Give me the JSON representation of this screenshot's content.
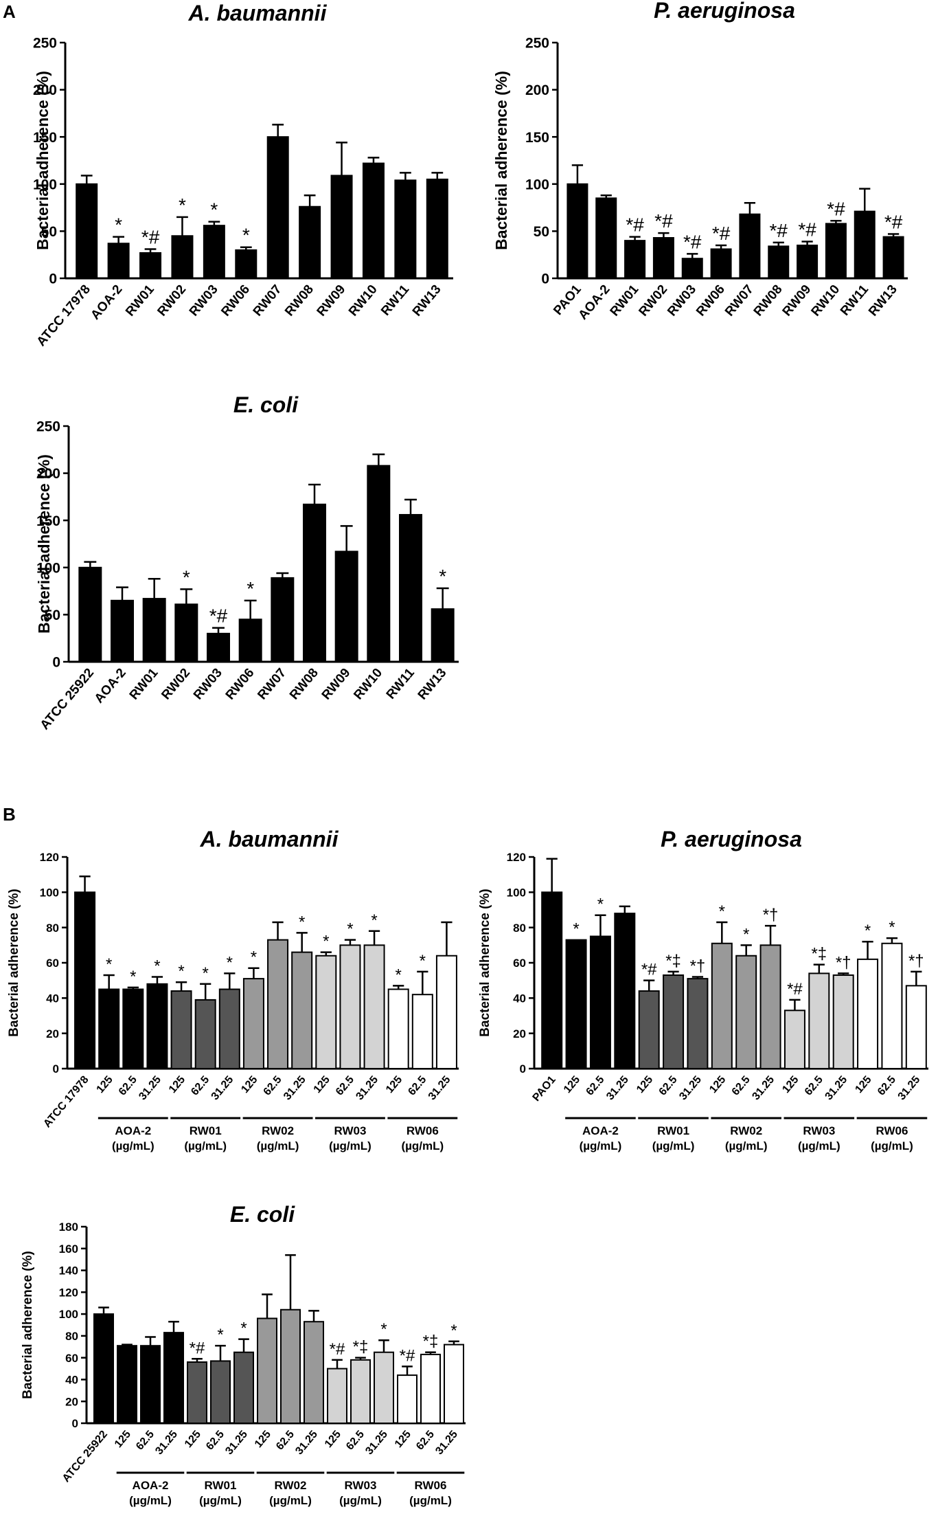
{
  "panels": {
    "A": "A",
    "B": "B"
  },
  "legend_colors": {
    "black": "#000000",
    "dark_gray": "#555555",
    "mid_gray": "#999999",
    "light_gray": "#d3d3d3",
    "white": "#ffffff"
  },
  "chart_data": [
    {
      "type": "bar",
      "panel": "A",
      "title": "A. baumannii",
      "ylabel": "Bacterial adherence (%)",
      "xlabel": "",
      "ylim": [
        0,
        250
      ],
      "yticks": [
        0,
        50,
        100,
        150,
        200,
        250
      ],
      "categories": [
        "ATCC 17978",
        "AOA-2",
        "RW01",
        "RW02",
        "RW03",
        "RW06",
        "RW07",
        "RW08",
        "RW09",
        "RW10",
        "RW11",
        "RW13"
      ],
      "values": [
        100,
        37,
        27,
        45,
        56,
        30,
        150,
        76,
        109,
        122,
        104,
        105
      ],
      "errors": [
        9,
        7,
        4,
        20,
        4,
        3,
        13,
        12,
        35,
        6,
        8,
        7
      ],
      "annotations": [
        "",
        "*",
        "*#",
        "*",
        "*",
        "*",
        "",
        "",
        "",
        "",
        "",
        ""
      ],
      "bar_colors": [
        "black",
        "black",
        "black",
        "black",
        "black",
        "black",
        "black",
        "black",
        "black",
        "black",
        "black",
        "black"
      ]
    },
    {
      "type": "bar",
      "panel": "A",
      "title": "P. aeruginosa",
      "ylabel": "Bacterial adherence (%)",
      "xlabel": "",
      "ylim": [
        0,
        250
      ],
      "yticks": [
        0,
        50,
        100,
        150,
        200,
        250
      ],
      "categories": [
        "PAO1",
        "AOA-2",
        "RW01",
        "RW02",
        "RW03",
        "RW06",
        "RW07",
        "RW08",
        "RW09",
        "RW10",
        "RW11",
        "RW13"
      ],
      "values": [
        100,
        85,
        40,
        43,
        21,
        31,
        68,
        34,
        35,
        58,
        71,
        44
      ],
      "errors": [
        20,
        3,
        4,
        5,
        5,
        4,
        12,
        4,
        4,
        3,
        24,
        3
      ],
      "annotations": [
        "",
        "",
        "*#",
        "*#",
        "*#",
        "*#",
        "",
        "*#",
        "*#",
        "*#",
        "",
        "*#"
      ],
      "bar_colors": [
        "black",
        "black",
        "black",
        "black",
        "black",
        "black",
        "black",
        "black",
        "black",
        "black",
        "black",
        "black"
      ]
    },
    {
      "type": "bar",
      "panel": "A",
      "title": "E. coli",
      "ylabel": "Bacterial adherence (%)",
      "xlabel": "",
      "ylim": [
        0,
        250
      ],
      "yticks": [
        0,
        50,
        100,
        150,
        200,
        250
      ],
      "categories": [
        "ATCC 25922",
        "AOA-2",
        "RW01",
        "RW02",
        "RW03",
        "RW06",
        "RW07",
        "RW08",
        "RW09",
        "RW10",
        "RW11",
        "RW13"
      ],
      "values": [
        100,
        65,
        67,
        61,
        30,
        45,
        89,
        167,
        117,
        208,
        156,
        56
      ],
      "errors": [
        6,
        14,
        21,
        16,
        6,
        20,
        5,
        21,
        27,
        12,
        16,
        22
      ],
      "annotations": [
        "",
        "",
        "",
        "*",
        "*#",
        "*",
        "",
        "",
        "",
        "",
        "",
        "*"
      ],
      "bar_colors": [
        "black",
        "black",
        "black",
        "black",
        "black",
        "black",
        "black",
        "black",
        "black",
        "black",
        "black",
        "black"
      ]
    },
    {
      "type": "bar",
      "panel": "B",
      "title": "A. baumannii",
      "ylabel": "Bacterial adherence (%)",
      "xlabel": "",
      "ylim": [
        0,
        120
      ],
      "yticks": [
        0,
        20,
        40,
        60,
        80,
        100,
        120
      ],
      "categories": [
        "ATCC 17978",
        "125",
        "62.5",
        "31.25",
        "125",
        "62.5",
        "31.25",
        "125",
        "62.5",
        "31.25",
        "125",
        "62.5",
        "31.25",
        "125",
        "62.5",
        "31.25"
      ],
      "values": [
        100,
        45,
        45,
        48,
        44,
        39,
        45,
        51,
        73,
        66,
        64,
        70,
        70,
        45,
        42,
        64
      ],
      "errors": [
        9,
        8,
        1,
        4,
        5,
        9,
        9,
        6,
        10,
        11,
        2,
        3,
        8,
        2,
        13,
        19
      ],
      "annotations": [
        "",
        "*",
        "*",
        "*",
        "*",
        "*",
        "*",
        "*",
        "",
        "*",
        "*",
        "*",
        "*",
        "*",
        "*",
        ""
      ],
      "bar_colors": [
        "black",
        "black",
        "black",
        "black",
        "dark_gray",
        "dark_gray",
        "dark_gray",
        "mid_gray",
        "mid_gray",
        "mid_gray",
        "light_gray",
        "light_gray",
        "light_gray",
        "white",
        "white",
        "white"
      ],
      "groups": [
        {
          "label": "AOA-2",
          "unit": "(µg/mL)",
          "start": 1,
          "end": 3
        },
        {
          "label": "RW01",
          "unit": "(µg/mL)",
          "start": 4,
          "end": 6
        },
        {
          "label": "RW02",
          "unit": "(µg/mL)",
          "start": 7,
          "end": 9
        },
        {
          "label": "RW03",
          "unit": "(µg/mL)",
          "start": 10,
          "end": 12
        },
        {
          "label": "RW06",
          "unit": "(µg/mL)",
          "start": 13,
          "end": 15
        }
      ]
    },
    {
      "type": "bar",
      "panel": "B",
      "title": "P. aeruginosa",
      "ylabel": "Bacterial adherence (%)",
      "xlabel": "",
      "ylim": [
        0,
        120
      ],
      "yticks": [
        0,
        20,
        40,
        60,
        80,
        100,
        120
      ],
      "categories": [
        "PAO1",
        "125",
        "62.5",
        "31.25",
        "125",
        "62.5",
        "31.25",
        "125",
        "62.5",
        "31.25",
        "125",
        "62.5",
        "31.25",
        "125",
        "62.5",
        "31.25"
      ],
      "values": [
        100,
        73,
        75,
        88,
        44,
        53,
        51,
        71,
        64,
        70,
        33,
        54,
        53,
        62,
        71,
        47
      ],
      "errors": [
        19,
        0,
        12,
        4,
        6,
        2,
        1,
        12,
        6,
        11,
        6,
        5,
        1,
        10,
        3,
        8
      ],
      "annotations": [
        "",
        "*",
        "*",
        "",
        "*#",
        "*‡",
        "*†",
        "*",
        "*",
        "*†",
        "*#",
        "*‡",
        "*†",
        "*",
        "*",
        "*†"
      ],
      "bar_colors": [
        "black",
        "black",
        "black",
        "black",
        "dark_gray",
        "dark_gray",
        "dark_gray",
        "mid_gray",
        "mid_gray",
        "mid_gray",
        "light_gray",
        "light_gray",
        "light_gray",
        "white",
        "white",
        "white"
      ],
      "groups": [
        {
          "label": "AOA-2",
          "unit": "(µg/mL)",
          "start": 1,
          "end": 3
        },
        {
          "label": "RW01",
          "unit": "(µg/mL)",
          "start": 4,
          "end": 6
        },
        {
          "label": "RW02",
          "unit": "(µg/mL)",
          "start": 7,
          "end": 9
        },
        {
          "label": "RW03",
          "unit": "(µg/mL)",
          "start": 10,
          "end": 12
        },
        {
          "label": "RW06",
          "unit": "(µg/mL)",
          "start": 13,
          "end": 15
        }
      ]
    },
    {
      "type": "bar",
      "panel": "B",
      "title": "E. coli",
      "ylabel": "Bacterial adherence (%)",
      "xlabel": "",
      "ylim": [
        0,
        180
      ],
      "yticks": [
        0,
        20,
        40,
        60,
        80,
        100,
        120,
        140,
        160,
        180
      ],
      "categories": [
        "ATCC 25922",
        "125",
        "62.5",
        "31.25",
        "125",
        "62.5",
        "31.25",
        "125",
        "62.5",
        "31.25",
        "125",
        "62.5",
        "31.25",
        "125",
        "62.5",
        "31.25"
      ],
      "values": [
        100,
        71,
        71,
        83,
        56,
        57,
        65,
        96,
        104,
        93,
        50,
        58,
        65,
        44,
        63,
        72
      ],
      "errors": [
        6,
        1,
        8,
        10,
        3,
        14,
        12,
        22,
        50,
        10,
        8,
        2,
        11,
        8,
        2,
        3
      ],
      "annotations": [
        "",
        "",
        "",
        "",
        "*#",
        "*",
        "*",
        "",
        "",
        "",
        "*#",
        "*‡",
        "*",
        "*#",
        "*‡",
        "*"
      ],
      "bar_colors": [
        "black",
        "black",
        "black",
        "black",
        "dark_gray",
        "dark_gray",
        "dark_gray",
        "mid_gray",
        "mid_gray",
        "mid_gray",
        "light_gray",
        "light_gray",
        "light_gray",
        "white",
        "white",
        "white"
      ],
      "groups": [
        {
          "label": "AOA-2",
          "unit": "(µg/mL)",
          "start": 1,
          "end": 3
        },
        {
          "label": "RW01",
          "unit": "(µg/mL)",
          "start": 4,
          "end": 6
        },
        {
          "label": "RW02",
          "unit": "(µg/mL)",
          "start": 7,
          "end": 9
        },
        {
          "label": "RW03",
          "unit": "(µg/mL)",
          "start": 10,
          "end": 12
        },
        {
          "label": "RW06",
          "unit": "(µg/mL)",
          "start": 13,
          "end": 15
        }
      ]
    }
  ]
}
